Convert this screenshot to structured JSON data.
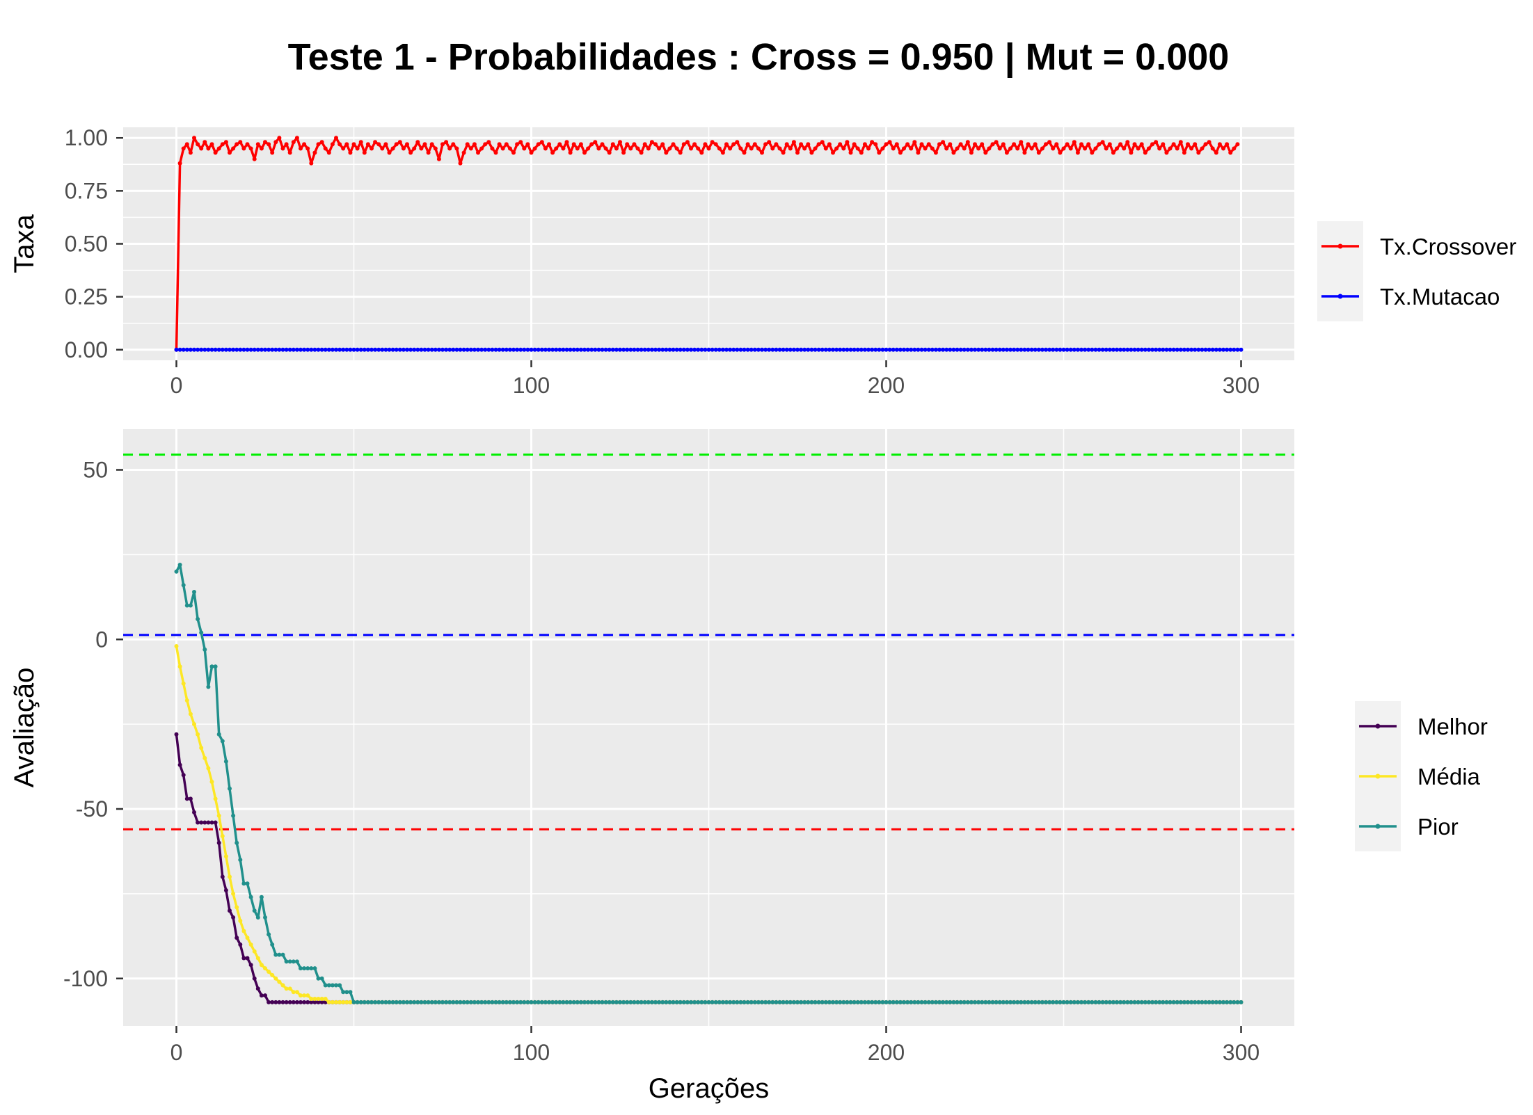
{
  "title": "Teste 1 - Probabilidades : Cross = 0.950 | Mut = 0.000",
  "colors": {
    "panel_bg": "#EBEBEB",
    "grid": "#FFFFFF",
    "tick_text": "#4D4D4D",
    "legend_key_bg": "#F2F2F2"
  },
  "chart_data": [
    {
      "type": "line",
      "title": "",
      "xlabel": "",
      "ylabel": "Taxa",
      "xlim": [
        -15,
        315
      ],
      "ylim": [
        -0.05,
        1.05
      ],
      "x_ticks": [
        0,
        100,
        200,
        300
      ],
      "y_ticks": [
        0,
        0.25,
        0.5,
        0.75,
        1.0
      ],
      "y_tick_labels": [
        "0.00",
        "0.25",
        "0.50",
        "0.75",
        "1.00"
      ],
      "grid": true,
      "legend_position": "right",
      "series": [
        {
          "name": "Tx.Crossover",
          "color": "#FF0000",
          "x_start": 0,
          "x_step": 1,
          "values": [
            0.0,
            0.88,
            0.95,
            0.97,
            0.93,
            1.0,
            0.97,
            0.95,
            0.98,
            0.95,
            0.97,
            0.93,
            0.95,
            0.97,
            0.98,
            0.93,
            0.95,
            0.97,
            0.98,
            0.95,
            0.97,
            0.95,
            0.9,
            0.97,
            0.95,
            0.98,
            0.97,
            0.93,
            0.98,
            1.0,
            0.95,
            0.97,
            0.93,
            0.98,
            1.0,
            0.95,
            0.97,
            0.95,
            0.88,
            0.93,
            0.97,
            0.98,
            0.95,
            0.93,
            0.97,
            1.0,
            0.97,
            0.95,
            0.97,
            0.93,
            0.97,
            0.95,
            0.98,
            0.93,
            0.97,
            0.95,
            0.98,
            0.97,
            0.95,
            0.97,
            0.93,
            0.95,
            0.97,
            0.98,
            0.95,
            0.97,
            0.93,
            0.95,
            0.98,
            0.95,
            0.97,
            0.93,
            0.97,
            0.95,
            0.9,
            0.97,
            0.98,
            0.95,
            0.97,
            0.95,
            0.88,
            0.93,
            0.97,
            0.95,
            0.97,
            0.93,
            0.95,
            0.97,
            0.98,
            0.95,
            0.93,
            0.97,
            0.95,
            0.97,
            0.95,
            0.93,
            0.97,
            0.98,
            0.95,
            0.97,
            0.93,
            0.95,
            0.97,
            0.98,
            0.95,
            0.97,
            0.93,
            0.95,
            0.97,
            0.95,
            0.98,
            0.93,
            0.97,
            0.95,
            0.97,
            0.93,
            0.95,
            0.97,
            0.98,
            0.95,
            0.97,
            0.95,
            0.93,
            0.97,
            0.95,
            0.98,
            0.93,
            0.97,
            0.95,
            0.97,
            0.95,
            0.93,
            0.97,
            0.95,
            0.98,
            0.97,
            0.95,
            0.97,
            0.93,
            0.95,
            0.97,
            0.95,
            0.93,
            0.97,
            0.98,
            0.95,
            0.97,
            0.95,
            0.93,
            0.97,
            0.95,
            0.98,
            0.97,
            0.95,
            0.93,
            0.97,
            0.95,
            0.97,
            0.98,
            0.95,
            0.93,
            0.97,
            0.95,
            0.97,
            0.95,
            0.93,
            0.97,
            0.98,
            0.95,
            0.97,
            0.95,
            0.93,
            0.97,
            0.95,
            0.98,
            0.93,
            0.97,
            0.95,
            0.97,
            0.93,
            0.95,
            0.97,
            0.98,
            0.95,
            0.97,
            0.93,
            0.95,
            0.97,
            0.95,
            0.98,
            0.93,
            0.97,
            0.95,
            0.93,
            0.97,
            0.95,
            0.98,
            0.97,
            0.93,
            0.95,
            0.97,
            0.98,
            0.95,
            0.97,
            0.93,
            0.95,
            0.97,
            0.95,
            0.98,
            0.93,
            0.97,
            0.95,
            0.97,
            0.95,
            0.93,
            0.97,
            0.98,
            0.95,
            0.97,
            0.93,
            0.95,
            0.97,
            0.95,
            0.98,
            0.93,
            0.97,
            0.95,
            0.97,
            0.93,
            0.95,
            0.97,
            0.98,
            0.95,
            0.97,
            0.93,
            0.95,
            0.97,
            0.95,
            0.98,
            0.93,
            0.97,
            0.95,
            0.97,
            0.93,
            0.95,
            0.97,
            0.98,
            0.95,
            0.97,
            0.93,
            0.95,
            0.97,
            0.95,
            0.98,
            0.93,
            0.97,
            0.95,
            0.97,
            0.93,
            0.95,
            0.97,
            0.98,
            0.95,
            0.97,
            0.93,
            0.95,
            0.97,
            0.95,
            0.98,
            0.93,
            0.97,
            0.95,
            0.97,
            0.93,
            0.95,
            0.97,
            0.98,
            0.95,
            0.97,
            0.93,
            0.95,
            0.97,
            0.95,
            0.98,
            0.93,
            0.97,
            0.95,
            0.97,
            0.93,
            0.95,
            0.97,
            0.98,
            0.95,
            0.93,
            0.97,
            0.95,
            0.97,
            0.93,
            0.95,
            0.97
          ]
        },
        {
          "name": "Tx.Mutacao",
          "color": "#0000FF",
          "x_start": 0,
          "x_step": 1,
          "constant": 0.0,
          "count": 301
        }
      ]
    },
    {
      "type": "line",
      "title": "",
      "xlabel": "Gerações",
      "ylabel": "Avaliação",
      "xlim": [
        -15,
        315
      ],
      "ylim": [
        -114,
        62
      ],
      "x_ticks": [
        0,
        100,
        200,
        300
      ],
      "y_ticks": [
        -100,
        -50,
        0,
        50
      ],
      "y_tick_labels": [
        "-100",
        "-50",
        "0",
        "50"
      ],
      "grid": true,
      "legend_position": "right",
      "reference_lines": [
        {
          "y": 54.5,
          "color": "#00EE00",
          "style": "dashed"
        },
        {
          "y": 1.3,
          "color": "#0000FF",
          "style": "dashed"
        },
        {
          "y": -56,
          "color": "#FF0000",
          "style": "dashed"
        }
      ],
      "series": [
        {
          "name": "Melhor",
          "color": "#440154",
          "x_start": 0,
          "x_step": 1,
          "values": [
            -28,
            -37,
            -40,
            -47,
            -47,
            -51,
            -54,
            -54,
            -54,
            -54,
            -54,
            -54,
            -60,
            -70,
            -74,
            -80,
            -82,
            -88,
            -90,
            -94,
            -94,
            -96,
            -100,
            -103,
            -105,
            -105,
            -107,
            -107,
            -107,
            -107,
            -107,
            -107,
            -107,
            -107,
            -107,
            -107,
            -107,
            -107,
            -107,
            -107,
            -107,
            -107,
            -107,
            -107,
            -107,
            -107,
            -107,
            -107,
            -107,
            -107,
            -107
          ],
          "hold_to": 300
        },
        {
          "name": "Média",
          "color": "#FDE725",
          "x_start": 0,
          "x_step": 1,
          "values": [
            -2,
            -8,
            -13,
            -18,
            -22,
            -25,
            -28,
            -32,
            -35,
            -38,
            -42,
            -47,
            -52,
            -58,
            -64,
            -70,
            -75,
            -79,
            -83,
            -86,
            -88,
            -90,
            -92,
            -94,
            -96,
            -97,
            -98,
            -99,
            -100,
            -101,
            -102,
            -103,
            -103,
            -104,
            -104,
            -105,
            -105,
            -105,
            -106,
            -106,
            -106,
            -106,
            -106,
            -107,
            -107,
            -107,
            -107,
            -107,
            -107,
            -107,
            -107
          ],
          "hold_to": 300
        },
        {
          "name": "Pior",
          "color": "#21908C",
          "x_start": 0,
          "x_step": 1,
          "values": [
            20,
            22,
            16,
            10,
            10,
            14,
            6,
            2,
            -3,
            -14,
            -8,
            -8,
            -28,
            -30,
            -36,
            -44,
            -52,
            -60,
            -65,
            -72,
            -72,
            -76,
            -80,
            -82,
            -76,
            -82,
            -87,
            -90,
            -93,
            -93,
            -93,
            -95,
            -95,
            -95,
            -95,
            -97,
            -97,
            -97,
            -97,
            -97,
            -100,
            -100,
            -102,
            -102,
            -102,
            -102,
            -102,
            -104,
            -104,
            -104,
            -107
          ],
          "hold_to": 300
        }
      ]
    }
  ]
}
